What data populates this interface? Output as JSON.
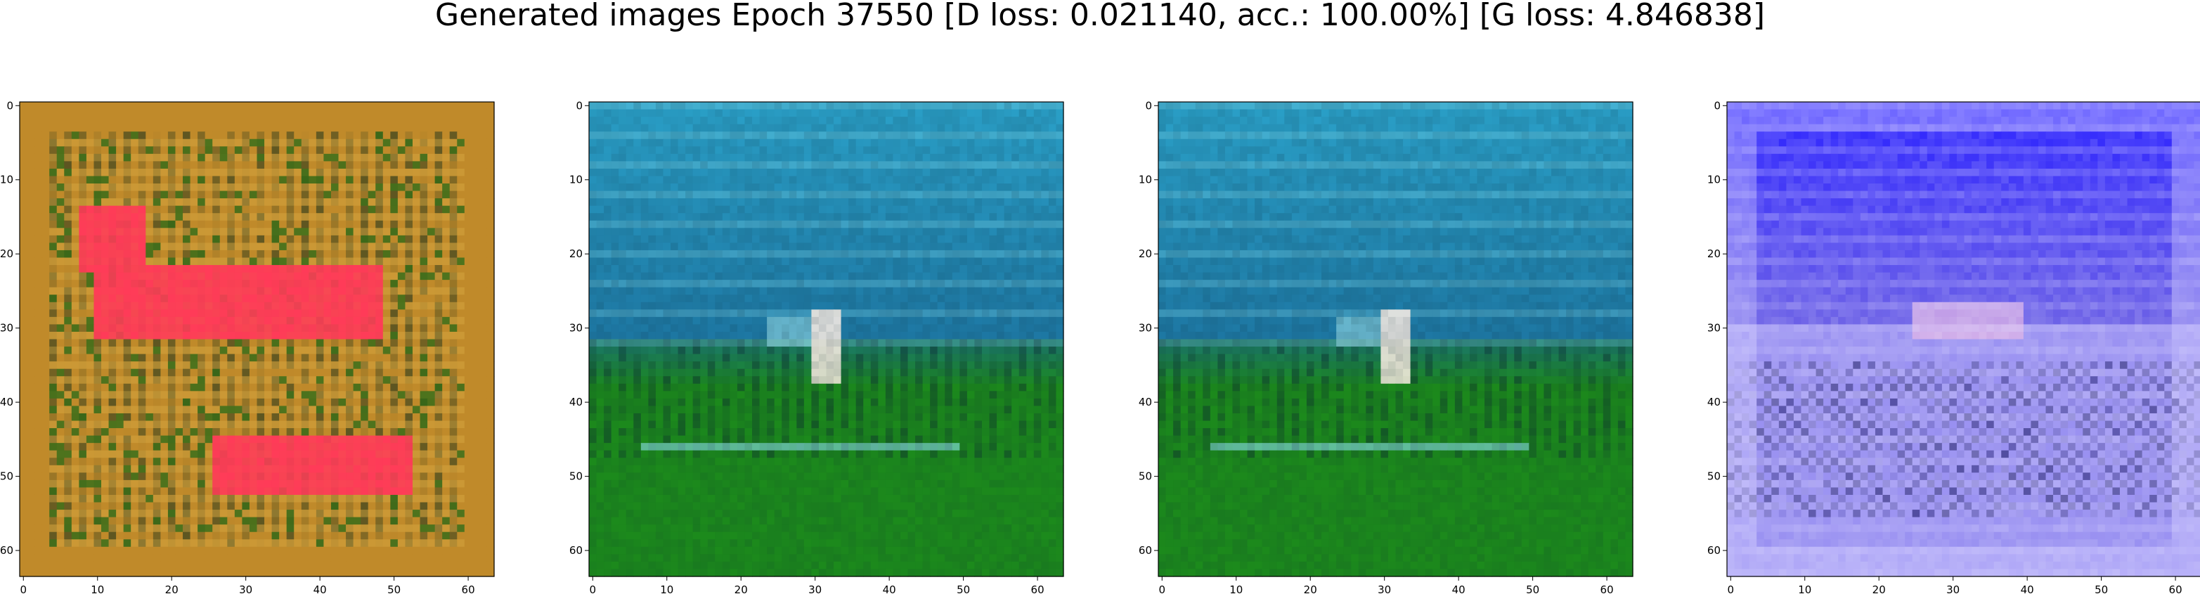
{
  "figure": {
    "title": "Generated images Epoch 37550 [D loss: 0.021140, acc.: 100.00%] [G loss: 4.846838]"
  },
  "axes_ticks": {
    "x": [
      "0",
      "10",
      "20",
      "30",
      "40",
      "50",
      "60"
    ],
    "y": [
      "0",
      "10",
      "20",
      "30",
      "40",
      "50",
      "60"
    ]
  },
  "panels": [
    {
      "name": "panel-1",
      "palette": {
        "base": "#c08a2a",
        "accent": "#ff3b58",
        "dark": "#0b2a1a",
        "mid": "#2f6a17",
        "light": "#e0b34a"
      }
    },
    {
      "name": "panel-2",
      "palette": {
        "top": "#2aa0c8",
        "mid": "#1a6d9a",
        "bottom": "#1c8a1c",
        "dark": "#0a2430",
        "light": "#8fe3f0"
      }
    },
    {
      "name": "panel-3",
      "palette": {
        "top": "#2aa0c8",
        "mid": "#1a6d9a",
        "bottom": "#1c8a1c",
        "dark": "#0a2430",
        "light": "#8fe3f0"
      }
    },
    {
      "name": "panel-4",
      "palette": {
        "base": "#6d62e6",
        "accent": "#2b22ff",
        "dark": "#13125a",
        "light": "#cfc9ff",
        "pink": "#e6b8e6"
      }
    }
  ]
}
